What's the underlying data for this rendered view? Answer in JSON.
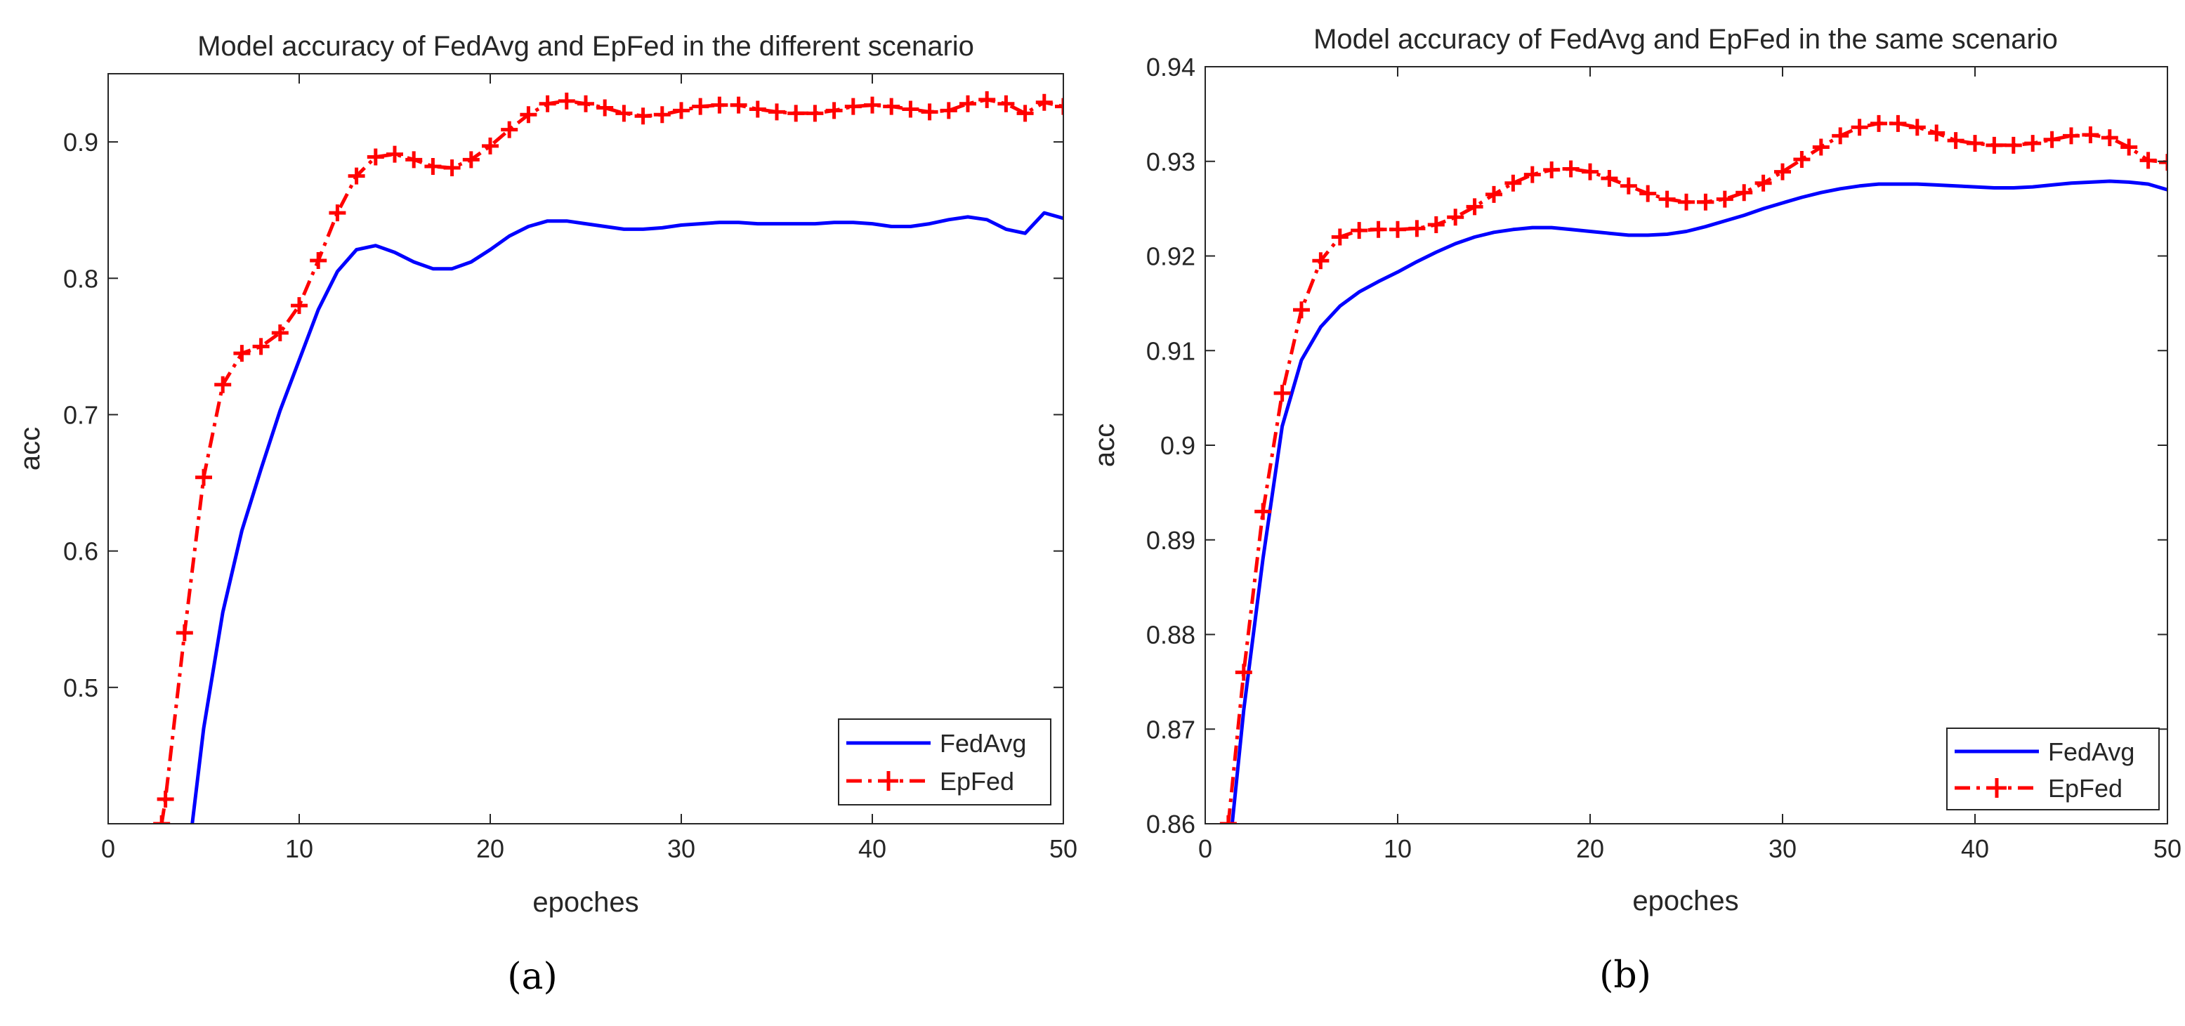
{
  "chart_data": [
    {
      "id": "a",
      "type": "line",
      "title": "Model accuracy of FedAvg and EpFed in the different scenario",
      "xlabel": "epoches",
      "ylabel": "acc",
      "xlim": [
        0,
        50
      ],
      "ylim": [
        0.4,
        0.95
      ],
      "xticks": [
        "0",
        "10",
        "20",
        "30",
        "40",
        "50"
      ],
      "yticks": [
        "0.5",
        "0.6",
        "0.7",
        "0.8",
        "0.9"
      ],
      "caption": "(a)",
      "grid": false,
      "legend_position": "bottom-right",
      "series": [
        {
          "name": "FedAvg",
          "color": "#0000ff",
          "style": "solid",
          "marker": "none",
          "x": [
            4.4,
            5,
            6,
            7,
            8,
            9,
            10,
            11,
            12,
            13,
            14,
            15,
            16,
            17,
            18,
            19,
            20,
            21,
            22,
            23,
            24,
            25,
            26,
            27,
            28,
            29,
            30,
            31,
            32,
            33,
            34,
            35,
            36,
            37,
            38,
            39,
            40,
            41,
            42,
            43,
            44,
            45,
            46,
            47,
            48,
            49,
            50
          ],
          "values": [
            0.4,
            0.47,
            0.555,
            0.615,
            0.66,
            0.703,
            0.74,
            0.777,
            0.805,
            0.821,
            0.824,
            0.819,
            0.812,
            0.807,
            0.807,
            0.812,
            0.821,
            0.831,
            0.838,
            0.842,
            0.842,
            0.84,
            0.838,
            0.836,
            0.836,
            0.837,
            0.839,
            0.84,
            0.841,
            0.841,
            0.84,
            0.84,
            0.84,
            0.84,
            0.841,
            0.841,
            0.84,
            0.838,
            0.838,
            0.84,
            0.843,
            0.845,
            0.843,
            0.836,
            0.833,
            0.848,
            0.844
          ]
        },
        {
          "name": "EpFed",
          "color": "#ff0000",
          "style": "dash-dot",
          "marker": "plus",
          "x": [
            2.8,
            3,
            4,
            5,
            6,
            7,
            8,
            9,
            10,
            11,
            12,
            13,
            14,
            15,
            16,
            17,
            18,
            19,
            20,
            21,
            22,
            23,
            24,
            25,
            26,
            27,
            28,
            29,
            30,
            31,
            32,
            33,
            34,
            35,
            36,
            37,
            38,
            39,
            40,
            41,
            42,
            43,
            44,
            45,
            46,
            47,
            48,
            49,
            50
          ],
          "values": [
            0.4,
            0.418,
            0.54,
            0.654,
            0.722,
            0.745,
            0.75,
            0.76,
            0.78,
            0.813,
            0.848,
            0.875,
            0.889,
            0.891,
            0.887,
            0.882,
            0.881,
            0.887,
            0.897,
            0.909,
            0.92,
            0.928,
            0.93,
            0.928,
            0.925,
            0.921,
            0.919,
            0.92,
            0.923,
            0.926,
            0.927,
            0.927,
            0.924,
            0.922,
            0.921,
            0.921,
            0.923,
            0.926,
            0.927,
            0.926,
            0.924,
            0.922,
            0.923,
            0.928,
            0.931,
            0.928,
            0.921,
            0.929,
            0.926
          ]
        }
      ]
    },
    {
      "id": "b",
      "type": "line",
      "title": "Model accuracy of FedAvg and EpFed in the same scenario",
      "xlabel": "epoches",
      "ylabel": "acc",
      "xlim": [
        0,
        50
      ],
      "ylim": [
        0.86,
        0.94
      ],
      "xticks": [
        "0",
        "10",
        "20",
        "30",
        "40",
        "50"
      ],
      "yticks": [
        "0.86",
        "0.87",
        "0.88",
        "0.89",
        "0.9",
        "0.91",
        "0.92",
        "0.93",
        "0.94"
      ],
      "caption": "(b)",
      "grid": false,
      "legend_position": "bottom-right",
      "series": [
        {
          "name": "FedAvg",
          "color": "#0000ff",
          "style": "solid",
          "marker": "none",
          "x": [
            1.4,
            2,
            3,
            4,
            5,
            6,
            7,
            8,
            9,
            10,
            11,
            12,
            13,
            14,
            15,
            16,
            17,
            18,
            19,
            20,
            21,
            22,
            23,
            24,
            25,
            26,
            27,
            28,
            29,
            30,
            31,
            32,
            33,
            34,
            35,
            36,
            37,
            38,
            39,
            40,
            41,
            42,
            43,
            44,
            45,
            46,
            47,
            48,
            49,
            50
          ],
          "values": [
            0.86,
            0.872,
            0.888,
            0.902,
            0.909,
            0.9125,
            0.9147,
            0.9162,
            0.9173,
            0.9183,
            0.9194,
            0.9204,
            0.9213,
            0.922,
            0.9225,
            0.9228,
            0.923,
            0.923,
            0.9228,
            0.9226,
            0.9224,
            0.9222,
            0.9222,
            0.9223,
            0.9226,
            0.9231,
            0.9237,
            0.9243,
            0.925,
            0.9256,
            0.9262,
            0.9267,
            0.9271,
            0.9274,
            0.9276,
            0.9276,
            0.9276,
            0.9275,
            0.9274,
            0.9273,
            0.9272,
            0.9272,
            0.9273,
            0.9275,
            0.9277,
            0.9278,
            0.9279,
            0.9278,
            0.9276,
            0.927
          ]
        },
        {
          "name": "EpFed",
          "color": "#ff0000",
          "style": "dash-dot",
          "marker": "plus",
          "x": [
            1.2,
            2,
            3,
            4,
            5,
            6,
            7,
            8,
            9,
            10,
            11,
            12,
            13,
            14,
            15,
            16,
            17,
            18,
            19,
            20,
            21,
            22,
            23,
            24,
            25,
            26,
            27,
            28,
            29,
            30,
            31,
            32,
            33,
            34,
            35,
            36,
            37,
            38,
            39,
            40,
            41,
            42,
            43,
            44,
            45,
            46,
            47,
            48,
            49,
            50
          ],
          "values": [
            0.86,
            0.876,
            0.893,
            0.9055,
            0.9143,
            0.9195,
            0.922,
            0.9227,
            0.9228,
            0.9228,
            0.9229,
            0.9233,
            0.9241,
            0.9252,
            0.9265,
            0.9277,
            0.9286,
            0.9291,
            0.9292,
            0.9289,
            0.9282,
            0.9274,
            0.9266,
            0.926,
            0.9257,
            0.9257,
            0.926,
            0.9267,
            0.9277,
            0.9289,
            0.9302,
            0.9315,
            0.9327,
            0.9336,
            0.934,
            0.934,
            0.9336,
            0.933,
            0.9322,
            0.9319,
            0.9317,
            0.9317,
            0.9319,
            0.9323,
            0.9327,
            0.9328,
            0.9325,
            0.9315,
            0.9301,
            0.9299
          ]
        }
      ]
    }
  ]
}
